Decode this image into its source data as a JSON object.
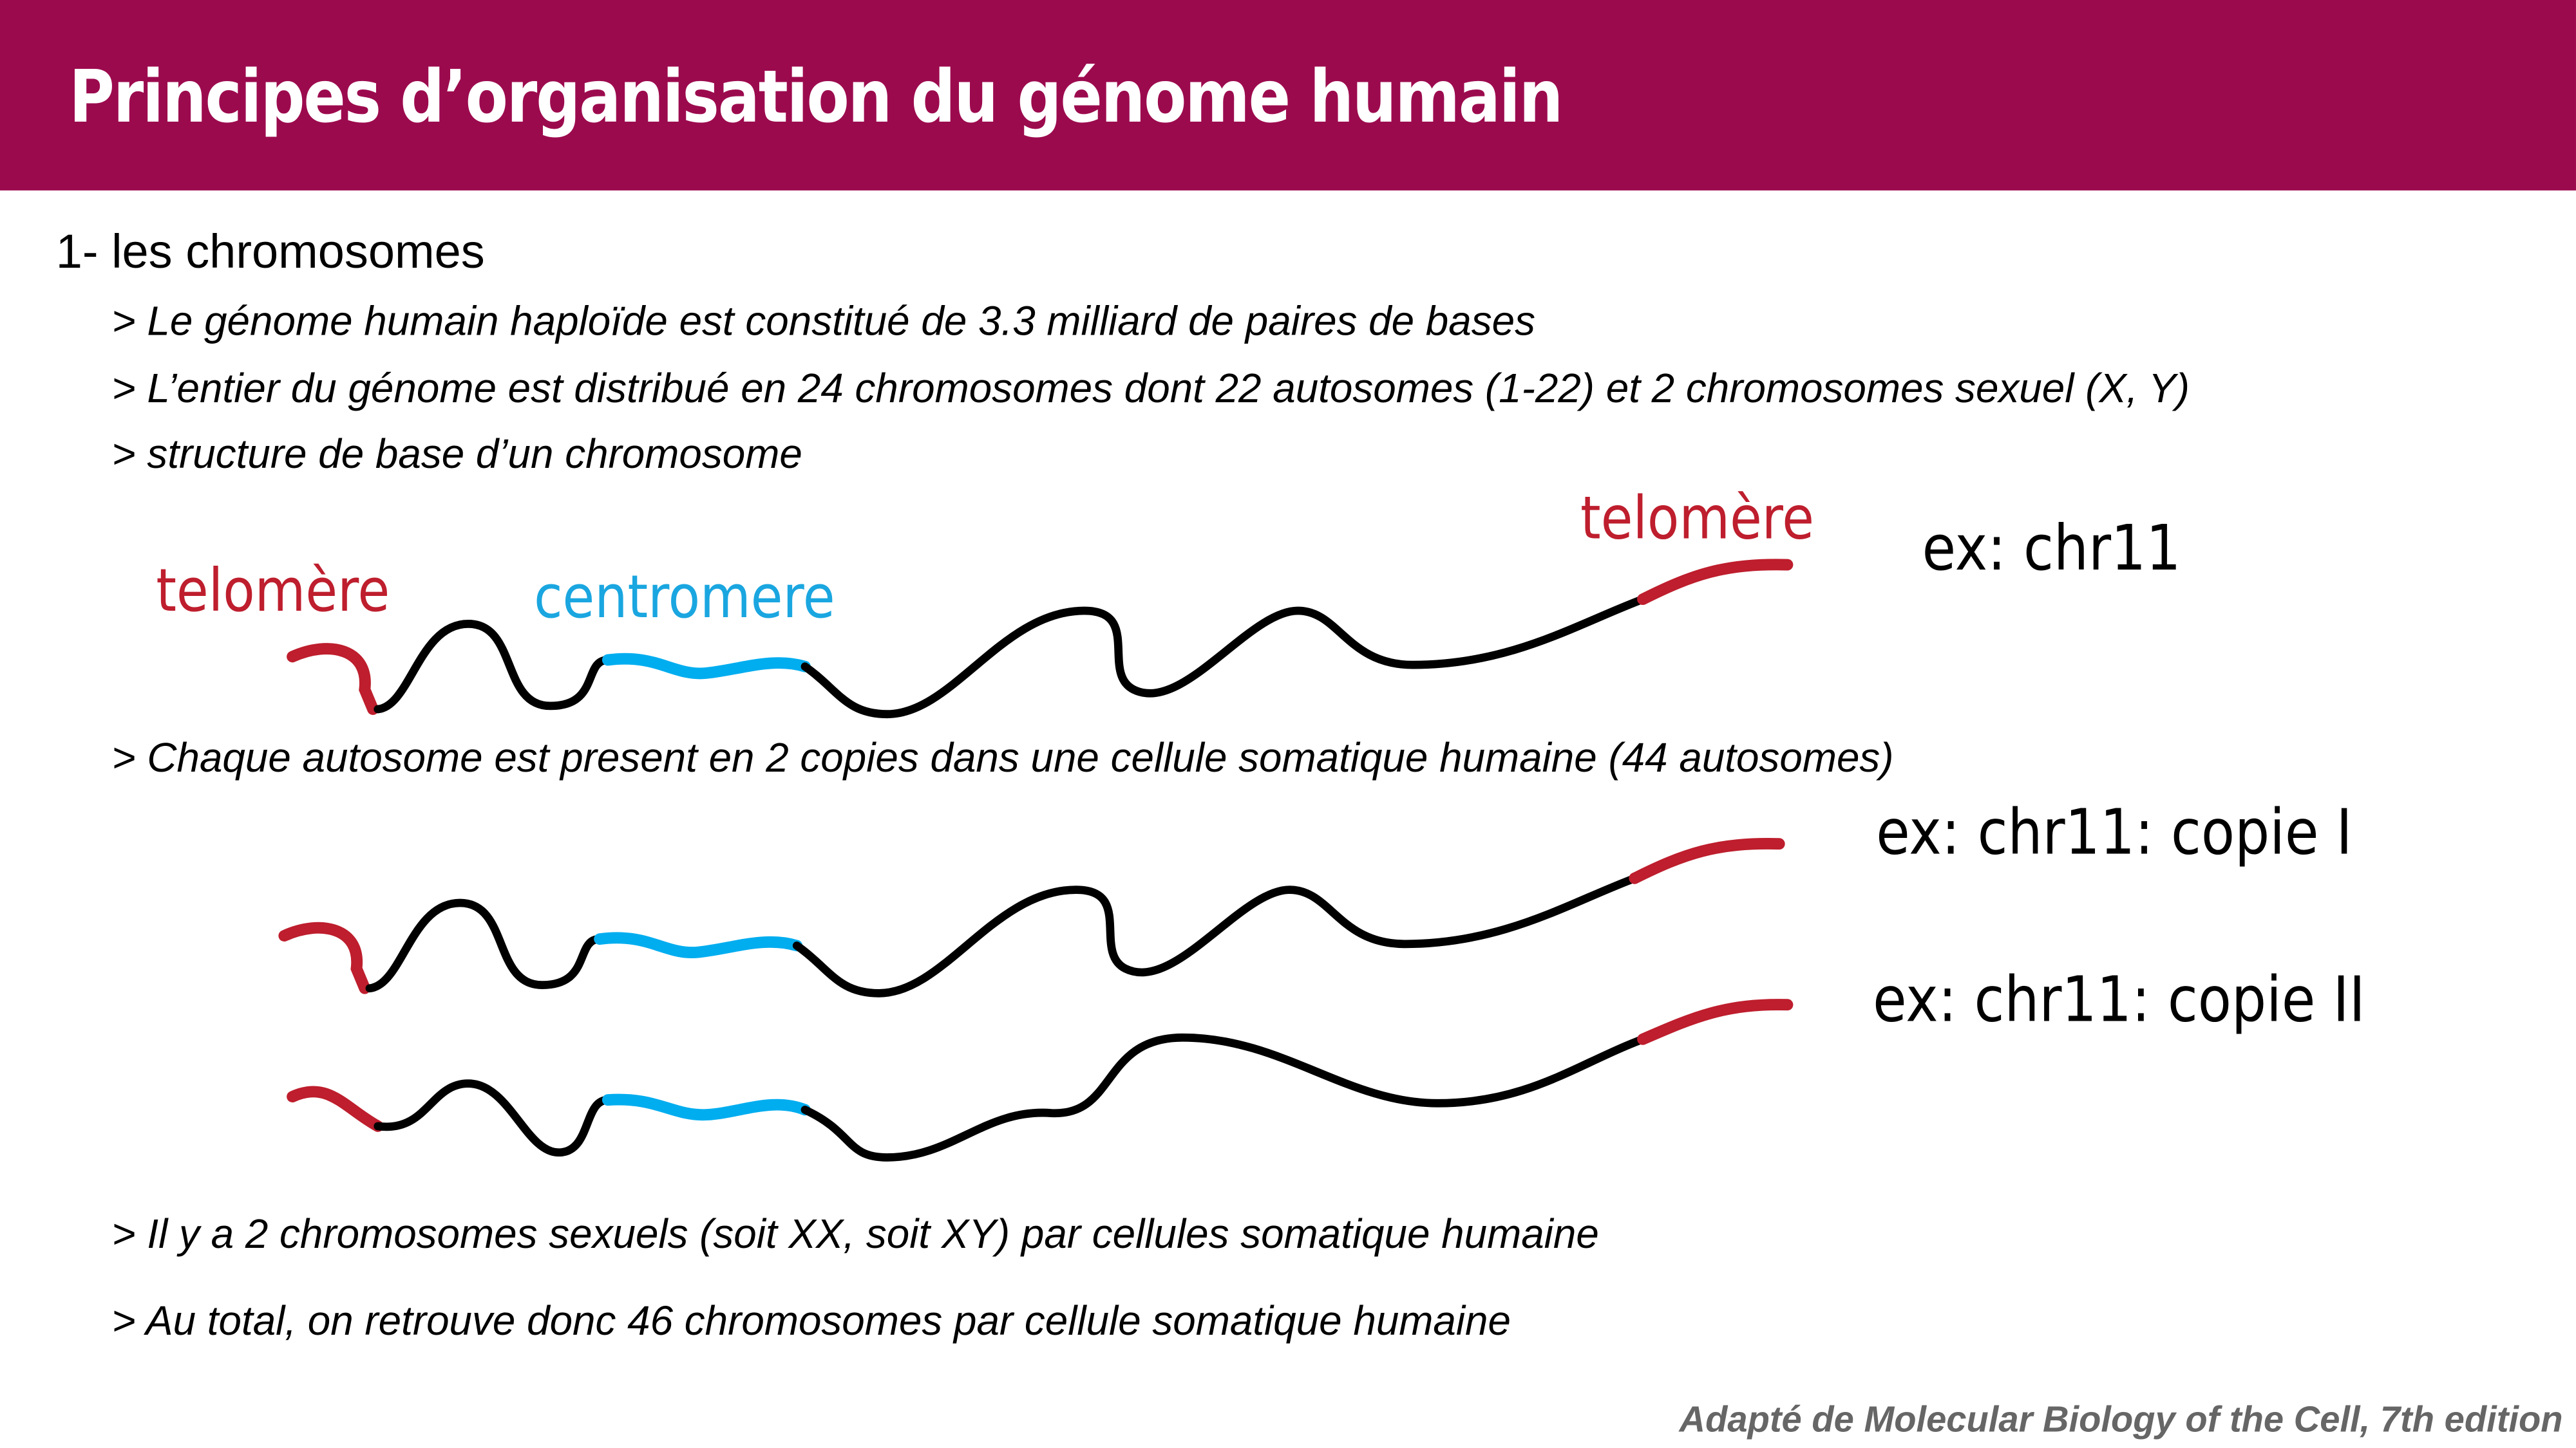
{
  "colors": {
    "header": "#9c0a4e",
    "telomere": "#be1e2d",
    "centromere": "#00adef",
    "chromatin": "#000000",
    "footer": "#666666"
  },
  "header": {
    "title": "Principes d’organisation du génome humain"
  },
  "section": {
    "heading": "1- les chromosomes"
  },
  "bullets": [
    "> Le génome humain haploïde est constitué de 3.3 milliard de paires de bases",
    "> L’entier du génome est distribué en 24 chromosomes dont 22 autosomes (1-22) et 2 chromosomes sexuel (X, Y)",
    "> structure de base d’un chromosome",
    "> Chaque autosome est present en 2 copies dans une cellule somatique humaine (44 autosomes)",
    "> Il y a 2 chromosomes sexuels (soit XX, soit XY) par cellules somatique humaine",
    "> Au total, on retrouve donc 46 chromosomes par cellule somatique humaine"
  ],
  "diagram": {
    "telomere_left": "telomère",
    "centromere": "centromere",
    "telomere_right": "telomère",
    "example": "ex: chr11",
    "copy1": "ex: chr11: copie I",
    "copy2": "ex: chr11: copie II"
  },
  "footer": {
    "credit": "Adapté de Molecular Biology of the Cell, 7th edition"
  }
}
